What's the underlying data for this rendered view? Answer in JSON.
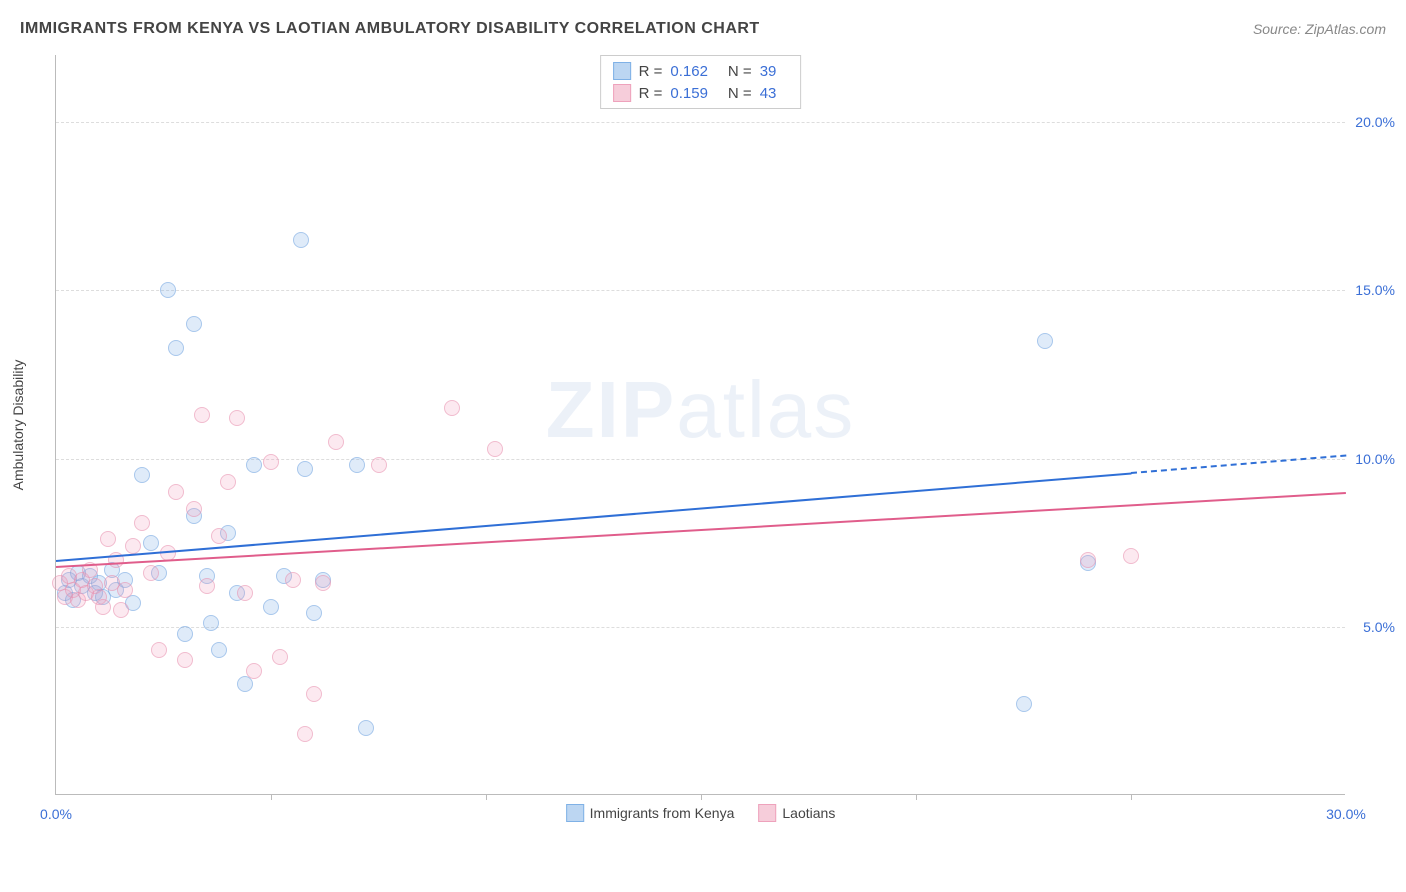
{
  "title": "IMMIGRANTS FROM KENYA VS LAOTIAN AMBULATORY DISABILITY CORRELATION CHART",
  "source": "Source: ZipAtlas.com",
  "watermark": {
    "bold": "ZIP",
    "light": "atlas"
  },
  "chart": {
    "type": "scatter",
    "ylabel": "Ambulatory Disability",
    "xlim": [
      0,
      30
    ],
    "ylim": [
      0,
      22
    ],
    "xtick_labels": {
      "0": "0.0%",
      "30": "30.0%"
    },
    "xtick_marks": [
      5,
      10,
      15,
      20,
      25
    ],
    "ytick_labels": {
      "5": "5.0%",
      "10": "10.0%",
      "15": "15.0%",
      "20": "20.0%"
    },
    "background_color": "#ffffff",
    "grid_color": "#dddddd",
    "axis_color": "#bbbbbb",
    "label_color": "#3b6fd6",
    "series": [
      {
        "name": "Immigrants from Kenya",
        "color_fill": "rgba(120,170,230,0.4)",
        "color_stroke": "#6fa3e0",
        "swatch_fill": "#bcd6f2",
        "swatch_stroke": "#7fb1e6",
        "R": "0.162",
        "N": "39",
        "trend": {
          "x1": 0,
          "y1": 7.0,
          "x2": 25,
          "y2": 9.6,
          "dash_to_x": 30,
          "color": "#2f6fd6"
        },
        "points": [
          [
            0.2,
            6.0
          ],
          [
            0.3,
            6.4
          ],
          [
            0.4,
            5.8
          ],
          [
            0.5,
            6.6
          ],
          [
            0.6,
            6.2
          ],
          [
            0.8,
            6.5
          ],
          [
            0.9,
            6.0
          ],
          [
            1.0,
            6.3
          ],
          [
            1.1,
            5.9
          ],
          [
            1.3,
            6.7
          ],
          [
            1.4,
            6.1
          ],
          [
            1.6,
            6.4
          ],
          [
            1.8,
            5.7
          ],
          [
            2.0,
            9.5
          ],
          [
            2.2,
            7.5
          ],
          [
            2.4,
            6.6
          ],
          [
            2.6,
            15.0
          ],
          [
            2.8,
            13.3
          ],
          [
            3.0,
            4.8
          ],
          [
            3.2,
            14.0
          ],
          [
            3.2,
            8.3
          ],
          [
            3.5,
            6.5
          ],
          [
            3.6,
            5.1
          ],
          [
            3.8,
            4.3
          ],
          [
            4.0,
            7.8
          ],
          [
            4.2,
            6.0
          ],
          [
            4.4,
            3.3
          ],
          [
            4.6,
            9.8
          ],
          [
            5.0,
            5.6
          ],
          [
            5.3,
            6.5
          ],
          [
            5.7,
            16.5
          ],
          [
            5.8,
            9.7
          ],
          [
            6.0,
            5.4
          ],
          [
            6.2,
            6.4
          ],
          [
            7.0,
            9.8
          ],
          [
            7.2,
            2.0
          ],
          [
            22.5,
            2.7
          ],
          [
            23.0,
            13.5
          ],
          [
            24.0,
            6.9
          ]
        ]
      },
      {
        "name": "Laotians",
        "color_fill": "rgba(240,150,180,0.35)",
        "color_stroke": "#e88fae",
        "swatch_fill": "#f6cdda",
        "swatch_stroke": "#eea2bc",
        "R": "0.159",
        "N": "43",
        "trend": {
          "x1": 0,
          "y1": 6.8,
          "x2": 30,
          "y2": 9.0,
          "color": "#e05d8b"
        },
        "points": [
          [
            0.1,
            6.3
          ],
          [
            0.2,
            5.9
          ],
          [
            0.3,
            6.5
          ],
          [
            0.4,
            6.1
          ],
          [
            0.5,
            5.8
          ],
          [
            0.6,
            6.4
          ],
          [
            0.7,
            6.0
          ],
          [
            0.8,
            6.7
          ],
          [
            0.9,
            6.2
          ],
          [
            1.0,
            5.9
          ],
          [
            1.1,
            5.6
          ],
          [
            1.2,
            7.6
          ],
          [
            1.3,
            6.3
          ],
          [
            1.4,
            7.0
          ],
          [
            1.5,
            5.5
          ],
          [
            1.6,
            6.1
          ],
          [
            1.8,
            7.4
          ],
          [
            2.0,
            8.1
          ],
          [
            2.2,
            6.6
          ],
          [
            2.4,
            4.3
          ],
          [
            2.6,
            7.2
          ],
          [
            2.8,
            9.0
          ],
          [
            3.0,
            4.0
          ],
          [
            3.2,
            8.5
          ],
          [
            3.4,
            11.3
          ],
          [
            3.5,
            6.2
          ],
          [
            3.8,
            7.7
          ],
          [
            4.0,
            9.3
          ],
          [
            4.2,
            11.2
          ],
          [
            4.4,
            6.0
          ],
          [
            4.6,
            3.7
          ],
          [
            5.0,
            9.9
          ],
          [
            5.2,
            4.1
          ],
          [
            5.5,
            6.4
          ],
          [
            5.8,
            1.8
          ],
          [
            6.0,
            3.0
          ],
          [
            6.2,
            6.3
          ],
          [
            6.5,
            10.5
          ],
          [
            7.5,
            9.8
          ],
          [
            9.2,
            11.5
          ],
          [
            10.2,
            10.3
          ],
          [
            24.0,
            7.0
          ],
          [
            25.0,
            7.1
          ]
        ]
      }
    ],
    "legend_top_labels": {
      "R": "R =",
      "N": "N ="
    }
  }
}
